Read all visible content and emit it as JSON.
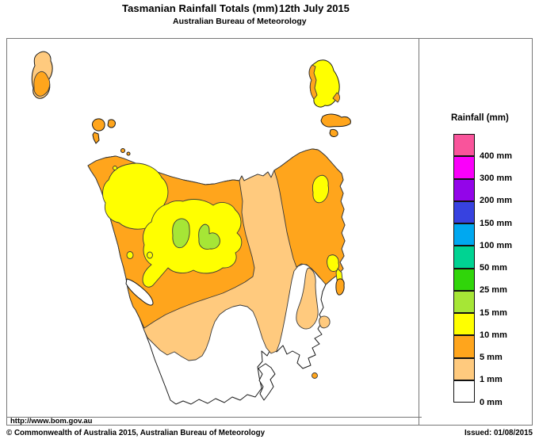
{
  "header": {
    "title": "Tasmanian Rainfall Totals (mm)",
    "date": "12th July 2015",
    "subtitle": "Australian Bureau of Meteorology"
  },
  "legend": {
    "title": "Rainfall (mm)",
    "swatches": [
      {
        "color": "#F9549B",
        "label": "400 mm"
      },
      {
        "color": "#FA00FA",
        "label": "300 mm"
      },
      {
        "color": "#9305E9",
        "label": "200 mm"
      },
      {
        "color": "#3742E0",
        "label": "150 mm"
      },
      {
        "color": "#00A8F0",
        "label": "100 mm"
      },
      {
        "color": "#00D392",
        "label": "50 mm"
      },
      {
        "color": "#30D50A",
        "label": "25 mm"
      },
      {
        "color": "#A6E636",
        "label": "15 mm"
      },
      {
        "color": "#FFFF00",
        "label": "10 mm"
      },
      {
        "color": "#FFA51C",
        "label": "5 mm"
      },
      {
        "color": "#FFCA7E",
        "label": "1 mm"
      },
      {
        "color": "#FFFFFF",
        "label": "0 mm"
      }
    ]
  },
  "map": {
    "palette": {
      "sea": "#FFFFFF",
      "rain_0mm": "#FFFFFF",
      "rain_1mm": "#FFCA7E",
      "rain_5mm": "#FFA51C",
      "rain_10mm": "#FFFF00",
      "rain_15mm": "#A6E636"
    }
  },
  "footer": {
    "url": "http://www.bom.gov.au",
    "copyright": "© Commonwealth of Australia 2015, Australian Bureau of Meteorology",
    "issued": "Issued: 01/08/2015"
  }
}
